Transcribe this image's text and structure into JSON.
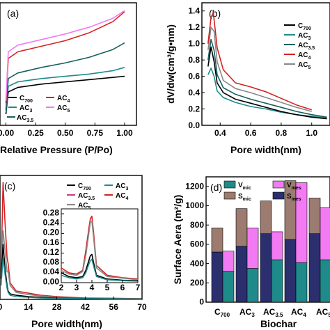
{
  "chart_data": [
    {
      "panel": "(a)",
      "type": "line",
      "xlabel": "Relative Pressure (P/Po)",
      "ylabel": "",
      "xlim": [
        -0.05,
        1.1
      ],
      "xticks": [
        "0.00",
        "0.25",
        "0.50",
        "0.75",
        "1.00"
      ],
      "legend": [
        "C700",
        "AC3",
        "AC3.5",
        "AC4",
        "AC5"
      ],
      "colors": {
        "C700": "#000000",
        "AC3": "#1f8a8a",
        "AC3.5": "#1a5f5f",
        "AC4": "#d62020",
        "AC5": "#f27af2"
      },
      "series": [
        {
          "name": "C700",
          "x": [
            0,
            0.02,
            0.1,
            0.3,
            0.5,
            0.7,
            0.9,
            1.0
          ],
          "y": [
            0.1,
            0.3,
            0.34,
            0.37,
            0.39,
            0.41,
            0.43,
            0.44
          ]
        },
        {
          "name": "AC3",
          "x": [
            0,
            0.02,
            0.1,
            0.3,
            0.5,
            0.7,
            0.9,
            1.0
          ],
          "y": [
            0.12,
            0.35,
            0.39,
            0.42,
            0.44,
            0.46,
            0.49,
            0.52
          ]
        },
        {
          "name": "AC3.5",
          "x": [
            0,
            0.02,
            0.1,
            0.3,
            0.5,
            0.7,
            0.9,
            1.0
          ],
          "y": [
            0.14,
            0.42,
            0.47,
            0.52,
            0.56,
            0.61,
            0.68,
            0.74
          ]
        },
        {
          "name": "AC4",
          "x": [
            0,
            0.02,
            0.1,
            0.3,
            0.5,
            0.7,
            0.9,
            1.0
          ],
          "y": [
            0.2,
            0.6,
            0.66,
            0.71,
            0.76,
            0.83,
            0.93,
            1.02
          ]
        },
        {
          "name": "AC5",
          "x": [
            0,
            0.02,
            0.1,
            0.3,
            0.5,
            0.7,
            0.9,
            1.0
          ],
          "y": [
            0.22,
            0.66,
            0.72,
            0.77,
            0.82,
            0.88,
            0.96,
            1.03
          ]
        }
      ]
    },
    {
      "panel": "(b)",
      "type": "line",
      "xlabel": "Pore width(nm)",
      "ylabel": "dV/dw(cm³/g•nm)",
      "xlim": [
        0.28,
        1.12
      ],
      "ylim": [
        0,
        1.5
      ],
      "xticks": [
        0.4,
        0.6,
        0.8,
        1.0
      ],
      "xtick_labels": [
        "0.4",
        "0.6",
        "0.8",
        "1.0"
      ],
      "yticks": [
        0.0,
        0.2,
        0.4,
        0.6,
        0.8,
        1.0,
        1.2,
        1.4
      ],
      "ytick_labels": [
        "0.0",
        "0.2",
        "0.4",
        "0.6",
        "0.8",
        "1.0",
        "1.2",
        "1.4"
      ],
      "legend": [
        "C700",
        "AC3",
        "AC3.5",
        "AC4",
        "AC5"
      ],
      "colors": {
        "C700": "#000000",
        "AC3": "#1f8a8a",
        "AC3.5": "#1a5f5f",
        "AC4": "#d62020",
        "AC5": "#888888"
      },
      "series": [
        {
          "name": "AC3",
          "x": [
            0.32,
            0.34,
            0.36,
            0.38,
            0.42,
            0.5,
            0.6,
            0.7,
            0.8,
            0.9,
            1.0,
            1.1
          ],
          "y": [
            0.62,
            0.7,
            0.6,
            0.42,
            0.34,
            0.28,
            0.23,
            0.2,
            0.16,
            0.13,
            0.11,
            0.09
          ]
        },
        {
          "name": "C700",
          "x": [
            0.32,
            0.34,
            0.36,
            0.38,
            0.42,
            0.5,
            0.6,
            0.7,
            0.8,
            0.9,
            1.0,
            1.1
          ],
          "y": [
            0.72,
            0.96,
            0.78,
            0.52,
            0.4,
            0.32,
            0.27,
            0.22,
            0.17,
            0.13,
            0.1,
            0.08
          ]
        },
        {
          "name": "AC3.5",
          "x": [
            0.32,
            0.34,
            0.36,
            0.38,
            0.42,
            0.5,
            0.6,
            0.7,
            0.8,
            0.9,
            1.0,
            1.1
          ],
          "y": [
            0.8,
            1.05,
            0.92,
            0.62,
            0.46,
            0.38,
            0.32,
            0.27,
            0.22,
            0.17,
            0.13,
            0.1
          ]
        },
        {
          "name": "AC5",
          "x": [
            0.32,
            0.34,
            0.36,
            0.38,
            0.42,
            0.5,
            0.6,
            0.7,
            0.8,
            0.9,
            1.0
          ],
          "y": [
            0.92,
            1.2,
            1.15,
            0.78,
            0.55,
            0.45,
            0.4,
            0.34,
            0.28,
            0.22,
            0.17
          ]
        },
        {
          "name": "AC4",
          "x": [
            0.32,
            0.34,
            0.355,
            0.38,
            0.42,
            0.5,
            0.6,
            0.7,
            0.8,
            0.9,
            1.0
          ],
          "y": [
            1.0,
            1.32,
            1.38,
            0.95,
            0.68,
            0.52,
            0.47,
            0.41,
            0.33,
            0.25,
            0.19
          ]
        }
      ]
    },
    {
      "panel": "(c)",
      "type": "line",
      "xlabel": "Pore width(nm)",
      "ylabel": "",
      "xlim": [
        0,
        70
      ],
      "xticks": [
        0,
        14,
        28,
        42,
        56,
        70
      ],
      "xtick_labels": [
        "0",
        "14",
        "28",
        "42",
        "56",
        "70"
      ],
      "legend": [
        "C700",
        "AC3",
        "AC3.5",
        "AC4",
        "AC5"
      ],
      "colors": {
        "C700": "#000000",
        "AC3": "#1f8a8a",
        "AC3.5": "#c04080",
        "AC4": "#d62020",
        "AC5": "#888888"
      },
      "series": [
        {
          "name": "AC4",
          "x": [
            0.5,
            1.5,
            2.5,
            3.5,
            4,
            5,
            8,
            14,
            20,
            28,
            42,
            56,
            70
          ],
          "y": [
            0.2,
            0.85,
            0.55,
            0.3,
            0.26,
            0.12,
            0.06,
            0.045,
            0.03,
            0.02,
            0.01,
            0.008,
            0.005
          ]
        },
        {
          "name": "AC5",
          "x": [
            0.5,
            1.5,
            2.5,
            3.5,
            4,
            5,
            8,
            14,
            20,
            28,
            42,
            56,
            70
          ],
          "y": [
            0.18,
            0.5,
            0.35,
            0.2,
            0.2,
            0.1,
            0.05,
            0.035,
            0.025,
            0.015,
            0.008,
            0.006,
            0.004
          ]
        },
        {
          "name": "C700",
          "x": [
            0.5,
            1.5,
            2.5,
            3.5,
            4,
            5,
            8,
            14,
            20,
            28,
            42,
            56,
            70
          ],
          "y": [
            0.15,
            0.4,
            0.22,
            0.1,
            0.06,
            0.04,
            0.03,
            0.02,
            0.015,
            0.01,
            0.006,
            0.004,
            0.003
          ]
        },
        {
          "name": "AC3",
          "x": [
            0.5,
            1.5,
            2.5,
            3.5,
            4,
            5,
            8,
            14,
            20,
            28,
            42,
            56,
            70
          ],
          "y": [
            0.1,
            0.3,
            0.18,
            0.08,
            0.05,
            0.03,
            0.02,
            0.015,
            0.01,
            0.008,
            0.005,
            0.003,
            0.002
          ]
        }
      ],
      "inset": {
        "xlim": [
          2,
          7
        ],
        "ylim": [
          0,
          0.3
        ],
        "xticks": [
          2,
          3,
          4,
          5,
          6,
          7
        ],
        "xtick_labels": [
          "2",
          "3",
          "4",
          "5",
          "6",
          "7"
        ],
        "yticks": [
          0.0,
          0.04,
          0.08,
          0.12,
          0.16,
          0.2,
          0.24,
          0.28
        ],
        "ytick_labels": [
          "0.00",
          "0.04",
          "0.08",
          "0.12",
          "0.16",
          "0.20",
          "0.24",
          "0.28"
        ],
        "series": [
          {
            "name": "AC4",
            "x": [
              2,
              2.5,
              3,
              3.4,
              3.6,
              3.8,
              3.9,
              4.0,
              4.1,
              4.3,
              5,
              6,
              7
            ],
            "y": [
              0.06,
              0.04,
              0.035,
              0.05,
              0.13,
              0.22,
              0.26,
              0.27,
              0.21,
              0.07,
              0.03,
              0.02,
              0.015
            ]
          },
          {
            "name": "AC5",
            "x": [
              2,
              2.5,
              3,
              3.4,
              3.6,
              3.8,
              3.9,
              4.0,
              4.1,
              4.3,
              5,
              6,
              7
            ],
            "y": [
              0.05,
              0.035,
              0.03,
              0.045,
              0.11,
              0.2,
              0.245,
              0.25,
              0.19,
              0.06,
              0.025,
              0.018,
              0.012
            ]
          },
          {
            "name": "C700",
            "x": [
              2,
              2.5,
              3,
              3.4,
              3.6,
              3.8,
              3.9,
              4.0,
              4.1,
              4.3,
              5,
              6,
              7
            ],
            "y": [
              0.04,
              0.025,
              0.02,
              0.025,
              0.05,
              0.09,
              0.11,
              0.115,
              0.085,
              0.03,
              0.015,
              0.01,
              0.008
            ]
          },
          {
            "name": "AC3",
            "x": [
              2,
              2.5,
              3,
              3.4,
              3.6,
              3.8,
              3.9,
              4.0,
              4.1,
              4.3,
              5,
              6,
              7
            ],
            "y": [
              0.03,
              0.02,
              0.015,
              0.02,
              0.04,
              0.075,
              0.09,
              0.095,
              0.07,
              0.025,
              0.012,
              0.008,
              0.006
            ]
          }
        ]
      }
    },
    {
      "panel": "(d)",
      "type": "bar",
      "xlabel": "Biochar",
      "ylabel": "Surface Aera (m²/g)",
      "ylim": [
        0,
        1300
      ],
      "yticks": [
        0,
        200,
        400,
        600,
        800,
        1000,
        1200
      ],
      "ytick_labels": [
        "0",
        "200",
        "400",
        "600",
        "800",
        "1000",
        "1200"
      ],
      "categories": [
        "C700",
        "AC3",
        "AC3.5",
        "AC4",
        "AC5"
      ],
      "legend": [
        "Vmic",
        "Vmes",
        "Smic",
        "Smes"
      ],
      "colors": {
        "Smes": "#2b2f6e",
        "Smic": "#9c7b70",
        "Vmic": "#1f8a8a",
        "Vmes": "#f27af2"
      },
      "series": [
        {
          "name": "Smes",
          "stack": "S",
          "values": [
            520,
            580,
            710,
            650,
            710
          ]
        },
        {
          "name": "Smic",
          "stack": "S",
          "values": [
            250,
            390,
            340,
            610,
            370
          ]
        },
        {
          "name": "Vmic",
          "stack": "V",
          "values": [
            320,
            350,
            440,
            410,
            440
          ]
        },
        {
          "name": "Vmes",
          "stack": "V",
          "values": [
            210,
            420,
            290,
            830,
            540
          ]
        }
      ]
    }
  ]
}
